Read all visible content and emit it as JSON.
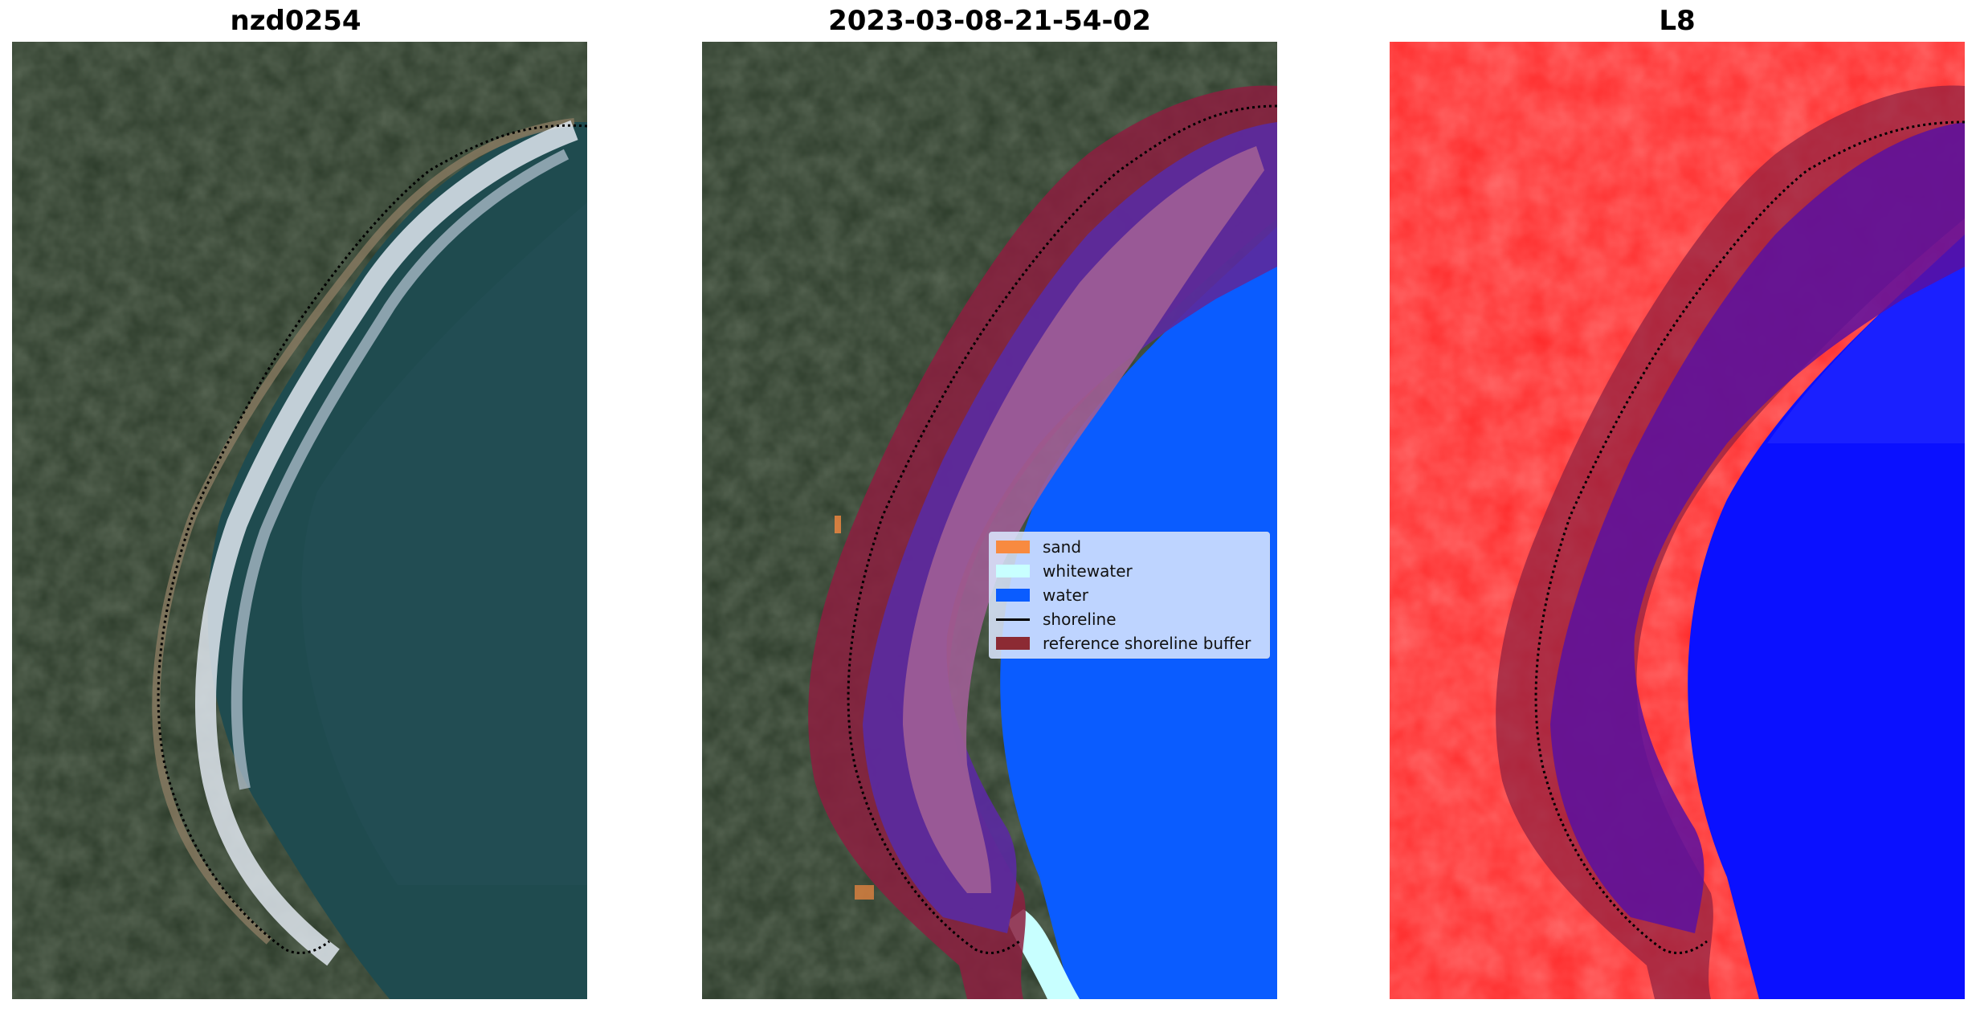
{
  "panels": [
    {
      "title": "nzd0254"
    },
    {
      "title": "2023-03-08-21-54-02"
    },
    {
      "title": "L8"
    }
  ],
  "legend": {
    "items": [
      {
        "label": "sand",
        "color": "#f88a40",
        "kind": "patch"
      },
      {
        "label": "whitewater",
        "color": "#c8ffff",
        "kind": "patch"
      },
      {
        "label": "water",
        "color": "#0a5cff",
        "kind": "patch"
      },
      {
        "label": "shoreline",
        "color": "#000000",
        "kind": "line"
      },
      {
        "label": "reference shoreline buffer",
        "color": "#8c2a33",
        "kind": "patch"
      }
    ]
  },
  "colors": {
    "land": "#2c3b2a",
    "sea": "#1f4b4f",
    "water_class": "#0a5cff",
    "buffer": "#8c1f40",
    "index_land": "#ff2a2a",
    "index_water": "#0a10ff"
  }
}
